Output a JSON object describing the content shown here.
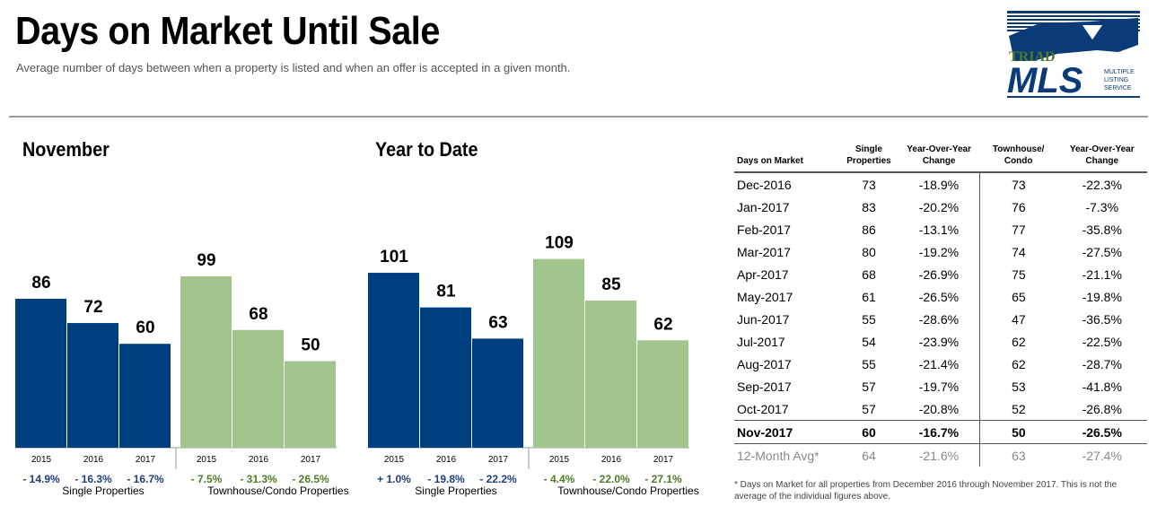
{
  "header": {
    "title": "Days on Market Until Sale",
    "subtitle": "Average number of days between when a property is listed and when an offer is accepted in a given month."
  },
  "logo": {
    "line1": "TRIAD",
    "line2": "MLS",
    "tagline": [
      "MULTIPLE",
      "LISTING",
      "SERVICE"
    ]
  },
  "colors": {
    "single": "#003f7f",
    "townhouse": "#a2c48d",
    "positive_change": "#1f3f7a",
    "negative_change": "#4e7a27"
  },
  "chart_data": [
    {
      "type": "bar",
      "title": "November",
      "categories": [
        "2015",
        "2016",
        "2017"
      ],
      "series": [
        {
          "name": "Single Properties",
          "values": [
            86,
            72,
            60
          ],
          "changes": [
            "- 14.9%",
            "- 16.3%",
            "- 16.7%"
          ]
        },
        {
          "name": "Townhouse/Condo Properties",
          "values": [
            99,
            68,
            50
          ],
          "changes": [
            "- 7.5%",
            "- 31.3%",
            "- 26.5%"
          ]
        }
      ]
    },
    {
      "type": "bar",
      "title": "Year to Date",
      "categories": [
        "2015",
        "2016",
        "2017"
      ],
      "series": [
        {
          "name": "Single Properties",
          "values": [
            101,
            81,
            63
          ],
          "changes": [
            "+ 1.0%",
            "- 19.8%",
            "- 22.2%"
          ]
        },
        {
          "name": "Townhouse/Condo Properties",
          "values": [
            109,
            85,
            62
          ],
          "changes": [
            "- 4.4%",
            "- 22.0%",
            "- 27.1%"
          ]
        }
      ]
    },
    {
      "type": "table",
      "columns": [
        "Days on Market",
        "Single Properties",
        "Year-Over-Year Change",
        "Townhouse/ Condo",
        "Year-Over-Year Change"
      ],
      "rows": [
        [
          "Dec-2016",
          "73",
          "-18.9%",
          "73",
          "-22.3%"
        ],
        [
          "Jan-2017",
          "83",
          "-20.2%",
          "76",
          "-7.3%"
        ],
        [
          "Feb-2017",
          "86",
          "-13.1%",
          "77",
          "-35.8%"
        ],
        [
          "Mar-2017",
          "80",
          "-19.2%",
          "74",
          "-27.5%"
        ],
        [
          "Apr-2017",
          "68",
          "-26.9%",
          "75",
          "-21.1%"
        ],
        [
          "May-2017",
          "61",
          "-26.5%",
          "65",
          "-19.8%"
        ],
        [
          "Jun-2017",
          "55",
          "-28.6%",
          "47",
          "-36.5%"
        ],
        [
          "Jul-2017",
          "54",
          "-23.9%",
          "62",
          "-22.5%"
        ],
        [
          "Aug-2017",
          "55",
          "-21.4%",
          "62",
          "-28.7%"
        ],
        [
          "Sep-2017",
          "57",
          "-19.7%",
          "53",
          "-41.8%"
        ],
        [
          "Oct-2017",
          "57",
          "-20.8%",
          "52",
          "-26.8%"
        ],
        [
          "Nov-2017",
          "60",
          "-16.7%",
          "50",
          "-26.5%"
        ],
        [
          "12-Month Avg*",
          "64",
          "-21.6%",
          "63",
          "-27.4%"
        ]
      ],
      "footnote": "* Days on Market for all properties from December 2016 through November 2017. This is not the average of the individual figures above."
    }
  ]
}
